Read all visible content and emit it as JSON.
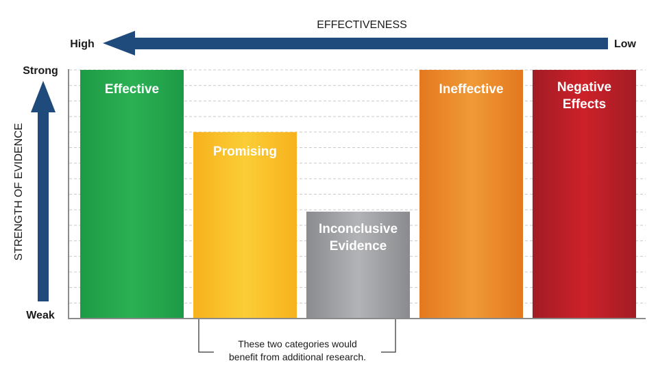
{
  "chart_data": {
    "type": "bar",
    "categories": [
      "Effective",
      "Promising",
      "Inconclusive Evidence",
      "Ineffective",
      "Negative Effects"
    ],
    "label_lines": [
      [
        "Effective"
      ],
      [
        "Promising"
      ],
      [
        "Inconclusive",
        "Evidence"
      ],
      [
        "Ineffective"
      ],
      [
        "Negative",
        "Effects"
      ]
    ],
    "values": [
      1.0,
      0.75,
      0.43,
      1.0,
      1.0
    ],
    "colors": [
      [
        "#1e9a45",
        "#2bb154"
      ],
      [
        "#f7b21d",
        "#fbcd36"
      ],
      [
        "#8a8b8e",
        "#b2b3b6"
      ],
      [
        "#e4781f",
        "#f09a36"
      ],
      [
        "#a21c25",
        "#cd2129"
      ]
    ],
    "ylim": [
      0,
      1
    ],
    "grid": true,
    "x_axis": {
      "title": "EFFECTIVENESS",
      "high_label": "High",
      "low_label": "Low"
    },
    "y_axis": {
      "title": "STRENGTH OF EVIDENCE",
      "top_label": "Strong",
      "bottom_label": "Weak"
    },
    "annotation": {
      "line1": "These two categories would",
      "line2": "benefit from additional research."
    }
  },
  "colors": {
    "arrow": "#1f4a7c",
    "grid": "#c8c8c8",
    "axis": "#8a8a8a"
  }
}
